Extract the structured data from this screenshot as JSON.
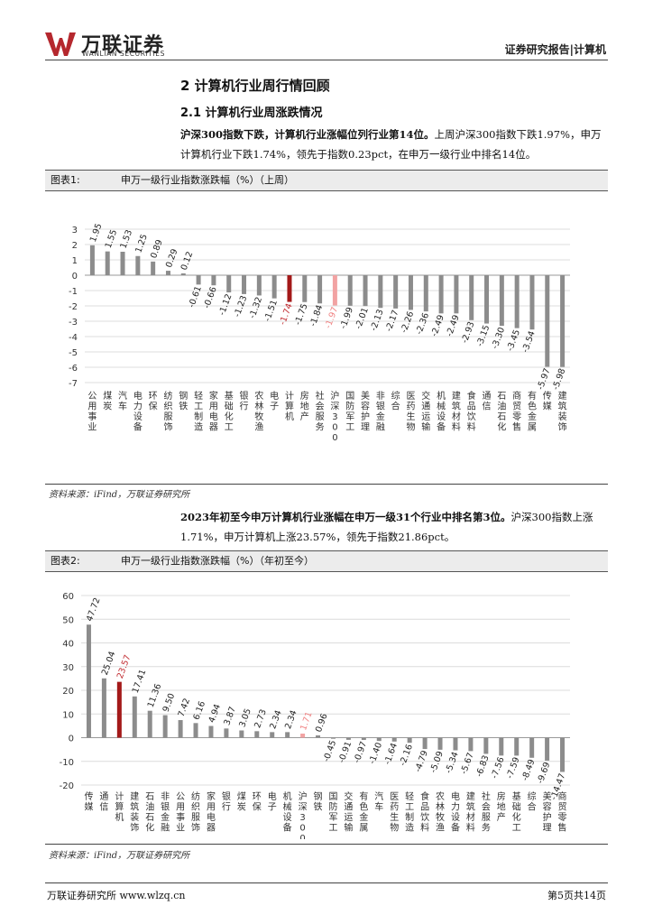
{
  "header": {
    "logo_cn": "万联证券",
    "logo_en": "WANLIAN SECURITIES",
    "right": "证券研究报告|计算机"
  },
  "section": {
    "h1": "2   计算机行业周行情回顾",
    "h2": "2.1  计算机行业周涨跌情况"
  },
  "para1": {
    "bold": "沪深300指数下跌，计算机行业涨幅位列行业第14位。",
    "normal": "上周沪深300指数下跌1.97%，申万计算机行业下跌1.74%，领先于指数0.23pct，在申万一级行业中排名14位。"
  },
  "figure1": {
    "label": "图表1:",
    "title": "申万一级行业指数涨跌幅（%）（上周）",
    "source": "资料来源：iFind，万联证券研究所"
  },
  "para2": {
    "bold": "2023年初至今申万计算机行业涨幅在申万一级31个行业中排名第3位。",
    "normal": "沪深300指数上涨1.71%，申万计算机上涨23.57%，领先于指数21.86pct。"
  },
  "figure2": {
    "label": "图表2:",
    "title": "申万一级行业指数涨跌幅（%）（年初至今）",
    "source": "资料来源：iFind，万联证券研究所"
  },
  "footer": {
    "left": "万联证券研究所 www.wlzq.cn",
    "right": "第5页共14页"
  },
  "colors": {
    "bar": "#8c8c8c",
    "highlight": "#a31919",
    "index": "#f2a3a3",
    "label_highlight": "#c0282d",
    "label_index": "#f08080",
    "logo_red": "#b5282e"
  },
  "chart_data": [
    {
      "type": "bar",
      "categories": [
        "公用事业",
        "煤炭",
        "汽车",
        "电力设备",
        "环保",
        "纺织服饰",
        "钢铁",
        "轻工制造",
        "家用电器",
        "基础化工",
        "银行",
        "农林牧渔",
        "电子",
        "计算机",
        "房地产",
        "社会服务",
        "沪深300",
        "国防军工",
        "美容护理",
        "非银金融",
        "综合",
        "医药生物",
        "交通运输",
        "机械设备",
        "建筑材料",
        "食品饮料",
        "通信",
        "石油石化",
        "商贸零售",
        "有色金属",
        "传媒",
        "建筑装饰"
      ],
      "values": [
        1.95,
        1.55,
        1.53,
        1.25,
        0.89,
        0.29,
        0.12,
        -0.61,
        -0.66,
        -1.12,
        -1.23,
        -1.32,
        -1.51,
        -1.74,
        -1.75,
        -1.84,
        -1.97,
        -1.99,
        -2.01,
        -2.13,
        -2.17,
        -2.26,
        -2.36,
        -2.49,
        -2.49,
        -2.93,
        -3.15,
        -3.3,
        -3.45,
        -3.54,
        -5.97,
        -5.98
      ],
      "labels": [
        "1.95",
        "1.55",
        "1.53",
        "1.25",
        "0.89",
        "0.29",
        "0.12",
        "-0.61",
        "-0.66",
        "-1.12",
        "-1.23",
        "-1.32",
        "-1.51",
        "-1.74",
        "-1.75",
        "-1.84",
        "-1.97",
        "-1.99",
        "-2.01",
        "-2.13",
        "-2.17",
        "-2.26",
        "-2.36",
        "-2.49",
        "-2.49",
        "-2.93",
        "-3.15",
        "-3.30",
        "-3.45",
        "-3.54",
        "-5.97",
        "-5.98"
      ],
      "highlight_index": 13,
      "index_index": 16,
      "ylim": [
        -7,
        3
      ],
      "yticks": [
        3,
        2,
        1,
        0,
        -1,
        -2,
        -3,
        -4,
        -5,
        -6,
        -7
      ],
      "grid": true
    },
    {
      "type": "bar",
      "categories": [
        "传媒",
        "通信",
        "计算机",
        "建筑装饰",
        "石油石化",
        "非银金融",
        "公用事业",
        "纺织服饰",
        "家用电器",
        "银行",
        "煤炭",
        "环保",
        "电子",
        "机械设备",
        "沪深300",
        "钢铁",
        "国防军工",
        "交通运输",
        "有色金属",
        "汽车",
        "医药生物",
        "轻工制造",
        "食品饮料",
        "农林牧渔",
        "电力设备",
        "建筑材料",
        "社会服务",
        "房地产",
        "基础化工",
        "综合",
        "美容护理",
        "商贸零售"
      ],
      "values": [
        47.72,
        25.04,
        23.57,
        17.41,
        11.36,
        9.5,
        7.42,
        6.16,
        4.94,
        3.87,
        3.05,
        2.73,
        2.34,
        2.34,
        1.71,
        0.96,
        -0.45,
        -0.91,
        -0.97,
        -1.4,
        -1.64,
        -2.16,
        -4.79,
        -5.09,
        -5.34,
        -5.67,
        -6.83,
        -7.56,
        -7.59,
        -8.49,
        -9.69,
        -14.47
      ],
      "labels": [
        "47.72",
        "25.04",
        "23.57",
        "17.41",
        "11.36",
        "9.50",
        "7.42",
        "6.16",
        "4.94",
        "3.87",
        "3.05",
        "2.73",
        "2.34",
        "2.34",
        "1.71",
        "0.96",
        "-0.45",
        "-0.91",
        "-0.97",
        "-1.40",
        "-1.64",
        "-2.16",
        "-4.79",
        "-5.09",
        "-5.34",
        "-5.67",
        "-6.83",
        "-7.56",
        "-7.59",
        "-8.49",
        "-9.69",
        "-14.47"
      ],
      "highlight_index": 2,
      "index_index": 14,
      "ylim": [
        -20,
        60
      ],
      "yticks": [
        60,
        50,
        40,
        30,
        20,
        10,
        0,
        -10,
        -20
      ],
      "grid": true
    }
  ]
}
